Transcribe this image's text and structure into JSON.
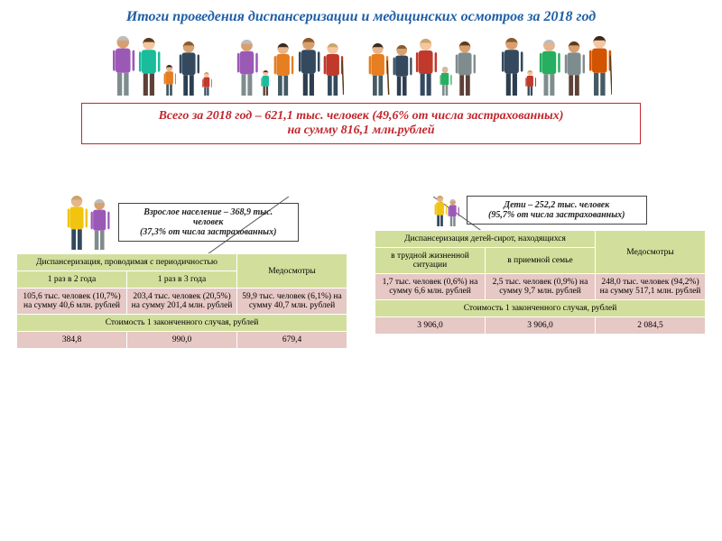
{
  "title": "Итоги проведения диспансеризации и медицинских осмотров за 2018 год",
  "summary": {
    "line1": "Всего за 2018 год – 621,1 тыс. человек (49,6% от числа застрахованных)",
    "line2": "на сумму 816,1 млн.рублей"
  },
  "adults": {
    "box_l1": "Взрослое население – 368,9 тыс.",
    "box_l2": "человек",
    "box_l3": "(37,3% от числа застрахованных)",
    "table": {
      "h1": "Диспансеризация, проводимая с периодичностью",
      "h2": "Медосмотры",
      "sub1": "1 раз в 2 года",
      "sub2": "1 раз в 3 года",
      "c1": "105,6 тыс. человек (10,7%) на сумму 40,6 млн. рублей",
      "c2": "203,4 тыс. человек (20,5%) на сумму 201,4 млн. рублей",
      "c3": "59,9 тыс. человек (6,1%) на сумму 40,7 млн. рублей",
      "cost_hdr": "Стоимость 1 законченного случая, рублей",
      "v1": "384,8",
      "v2": "990,0",
      "v3": "679,4"
    }
  },
  "children": {
    "box_l1": "Дети – 252,2 тыс. человек",
    "box_l2": "(95,7% от числа застрахованных)",
    "table": {
      "h1": "Диспансеризация детей-сирот, находящихся",
      "h2": "Медосмотры",
      "sub1": "в трудной жизненной ситуации",
      "sub2": "в приемной семье",
      "c1": "1,7 тыс. человек (0,6%) на сумму 6,6 млн. рублей",
      "c2": "2,5 тыс. человек (0,9%) на сумму 9,7 млн. рублей",
      "c3": "248,0 тыс. человек (94,2%) на сумму 517,1 млн. рублей",
      "cost_hdr": "Стоимость 1 законченного случая, рублей",
      "v1": "3 906,0",
      "v2": "3 906,0",
      "v3": "2 084,5"
    }
  },
  "colors": {
    "title": "#1f5fa8",
    "accent_red": "#c1272d",
    "table_green": "#d2df9c",
    "table_pink": "#e6c8c4"
  },
  "people_palettes": {
    "skin": [
      "#f4c7a1",
      "#e8b48a",
      "#d9a06f"
    ],
    "hair": [
      "#3a2b1d",
      "#8a5a2f",
      "#c9a56a",
      "#bdbdbd",
      "#5c3b1e"
    ],
    "tops": [
      "#e74c3c",
      "#3498db",
      "#2ecc71",
      "#f1c40f",
      "#9b59b6",
      "#1abc9c",
      "#e67e22",
      "#34495e",
      "#c0392b",
      "#27ae60",
      "#7f8c8d",
      "#d35400"
    ],
    "bottoms": [
      "#2c3e50",
      "#34495e",
      "#7f8c8d",
      "#5d4037",
      "#455a64"
    ]
  }
}
